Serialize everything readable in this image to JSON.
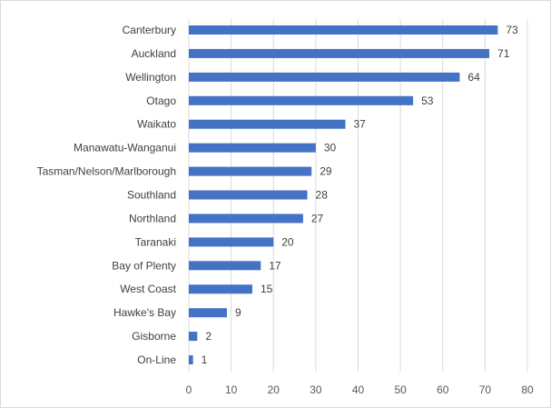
{
  "chart_data": {
    "type": "bar",
    "orientation": "horizontal",
    "categories": [
      "Canterbury",
      "Auckland",
      "Wellington",
      "Otago",
      "Waikato",
      "Manawatu-Wanganui",
      "Tasman/Nelson/Marlborough",
      "Southland",
      "Northland",
      "Taranaki",
      "Bay of Plenty",
      "West Coast",
      "Hawke's Bay",
      "Gisborne",
      "On-Line"
    ],
    "values": [
      73,
      71,
      64,
      53,
      37,
      30,
      29,
      28,
      27,
      20,
      17,
      15,
      9,
      2,
      1
    ],
    "x_ticks": [
      "0",
      "10",
      "20",
      "30",
      "40",
      "50",
      "60",
      "70",
      "80"
    ],
    "xlim": [
      0,
      80
    ],
    "grid": "vertical",
    "bar_color": "#4472C4",
    "grid_color": "#d9d9d9",
    "title": "",
    "xlabel": "",
    "ylabel": ""
  }
}
